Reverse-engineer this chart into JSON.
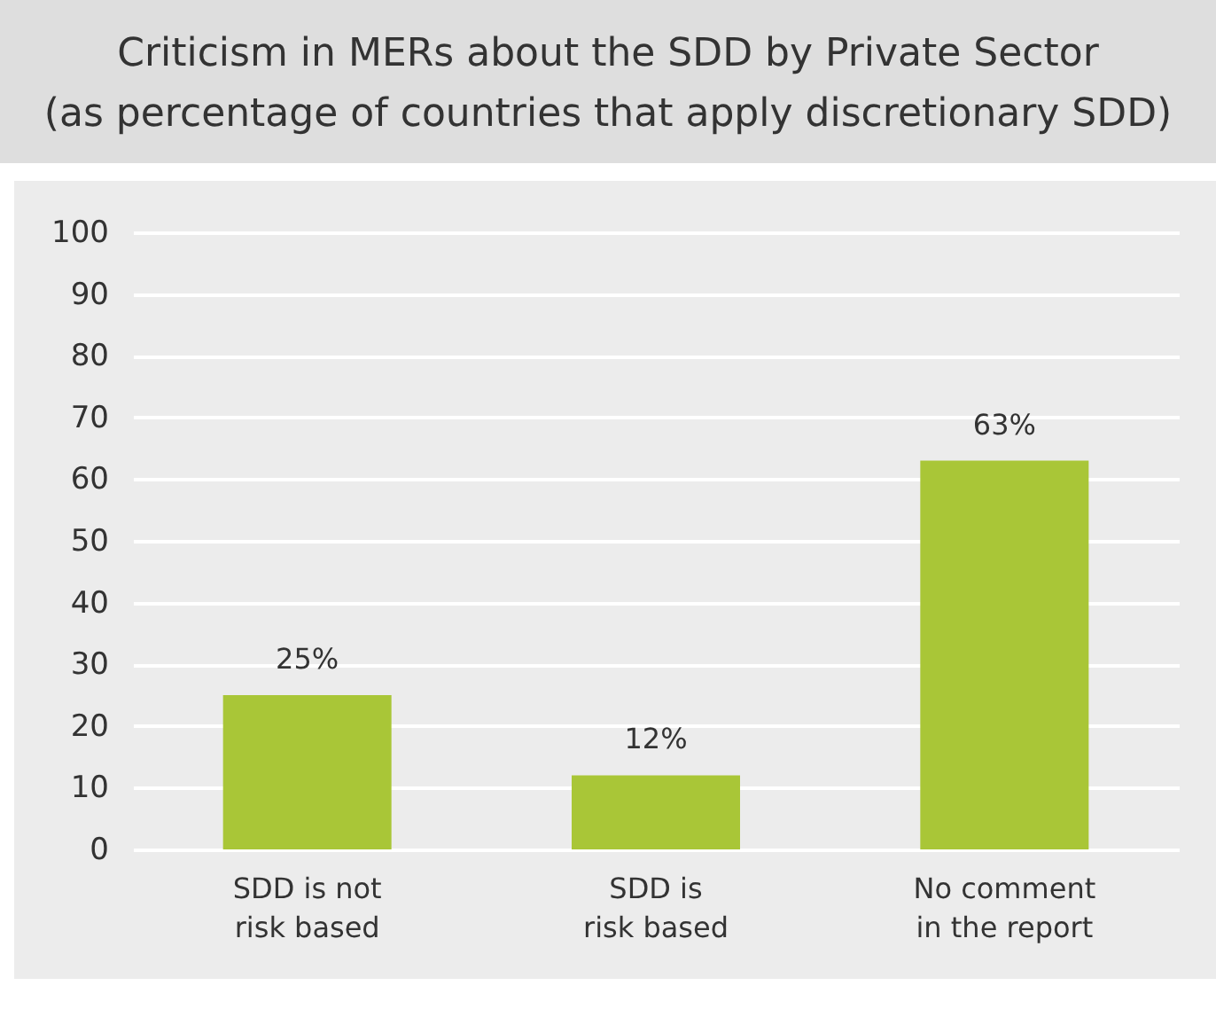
{
  "chart_data": {
    "type": "bar",
    "title": "Criticism in MERs about the SDD by Private Sector",
    "subtitle": "(as percentage of countries that apply discretionary SDD)",
    "categories": [
      "SDD is not\nrisk based",
      "SDD is\nrisk based",
      "No comment\nin the report"
    ],
    "values": [
      25,
      12,
      63
    ],
    "value_labels": [
      "25%",
      "12%",
      "63%"
    ],
    "color": "#a9c637",
    "ylim": [
      0,
      100
    ],
    "yticks": [
      0,
      10,
      20,
      30,
      40,
      50,
      60,
      70,
      80,
      90,
      100
    ],
    "grid": "y"
  }
}
